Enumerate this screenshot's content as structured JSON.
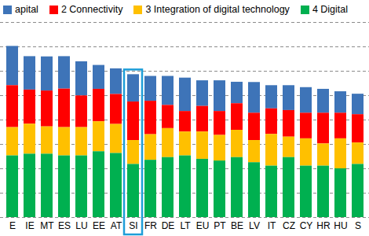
{
  "chart_data": {
    "type": "bar",
    "stacked": true,
    "grid": true,
    "legend": "top",
    "tick_labels": "x",
    "categories": [
      "E",
      "IE",
      "MT",
      "ES",
      "LU",
      "EE",
      "AT",
      "SI",
      "FR",
      "DE",
      "LT",
      "EU",
      "PT",
      "BE",
      "LV",
      "IT",
      "CZ",
      "CY",
      "HR",
      "HU",
      "S"
    ],
    "ylim": [
      0,
      0.8
    ],
    "yticks": [
      0,
      0.1,
      0.2,
      0.3,
      0.4,
      0.5,
      0.6,
      0.7,
      0.8
    ],
    "series": [
      {
        "name": "apital",
        "color": "#3e74b8",
        "values": [
          0.161,
          0.137,
          0.14,
          0.133,
          0.14,
          0.098,
          0.105,
          0.112,
          0.102,
          0.119,
          0.137,
          0.105,
          0.126,
          0.088,
          0.126,
          0.095,
          0.102,
          0.105,
          0.098,
          0.088,
          0.084
        ]
      },
      {
        "name": "2 Connectivity",
        "color": "#ff0000",
        "values": [
          0.172,
          0.14,
          0.147,
          0.158,
          0.13,
          0.133,
          0.123,
          0.158,
          0.137,
          0.095,
          0.084,
          0.105,
          0.098,
          0.109,
          0.112,
          0.105,
          0.109,
          0.105,
          0.126,
          0.105,
          0.116
        ]
      },
      {
        "name": "3 Integration of digital technology",
        "color": "#ffc000",
        "values": [
          0.116,
          0.123,
          0.112,
          0.116,
          0.116,
          0.123,
          0.119,
          0.098,
          0.105,
          0.119,
          0.098,
          0.112,
          0.105,
          0.112,
          0.091,
          0.13,
          0.084,
          0.112,
          0.091,
          0.123,
          0.088
        ]
      },
      {
        "name": "4 Digital",
        "color": "#00b050",
        "values": [
          0.253,
          0.26,
          0.26,
          0.253,
          0.253,
          0.27,
          0.263,
          0.218,
          0.235,
          0.246,
          0.253,
          0.239,
          0.232,
          0.246,
          0.225,
          0.211,
          0.246,
          0.211,
          0.211,
          0.2,
          0.218
        ]
      }
    ]
  }
}
